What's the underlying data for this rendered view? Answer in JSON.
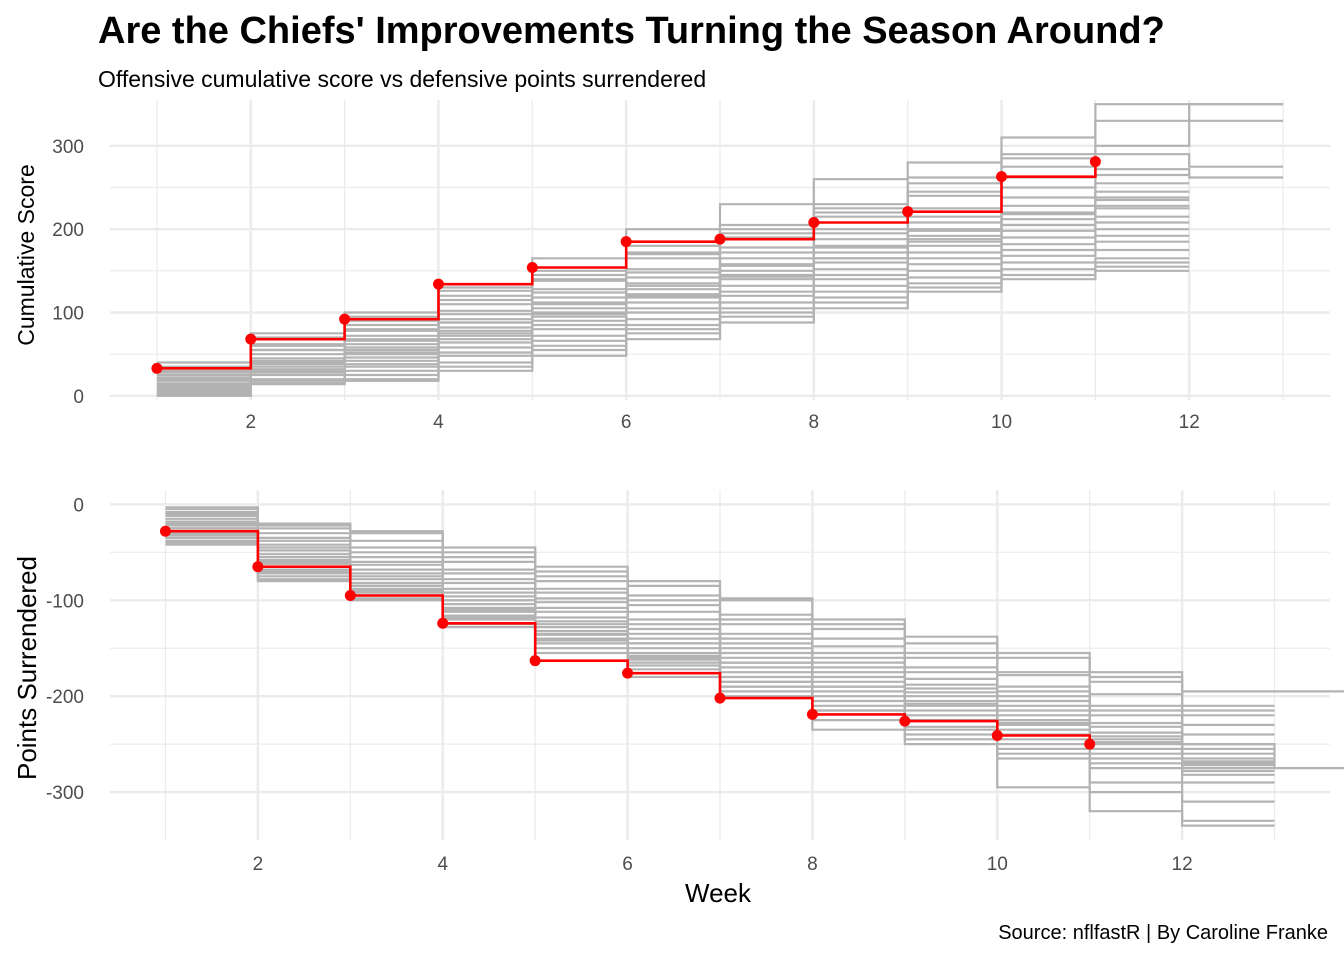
{
  "title": "Are the Chiefs' Improvements Turning the Season Around?",
  "subtitle": "Offensive cumulative score vs defensive points surrendered",
  "caption": "Source: nflfastR | By Caroline Franke",
  "colors": {
    "highlight": "#ff0000",
    "others": "#b3b3b3",
    "grid": "#ebebeb",
    "axis_text": "#4d4d4d"
  },
  "chart_data": [
    {
      "type": "line",
      "step": "horizontal-after",
      "title": "",
      "xlabel": "",
      "ylabel": "Cumulative Score",
      "xlim": [
        0.5,
        13.5
      ],
      "ylim": [
        -5,
        355
      ],
      "xticks": [
        2,
        4,
        6,
        8,
        10,
        12
      ],
      "yticks": [
        0,
        100,
        200,
        300
      ],
      "grid": true,
      "legend": "none",
      "highlight": {
        "x": [
          1,
          2,
          3,
          4,
          5,
          6,
          7,
          8,
          9,
          10,
          11
        ],
        "y": [
          33,
          68,
          92,
          134,
          154,
          185,
          188,
          208,
          221,
          263,
          281
        ]
      },
      "others": [
        {
          "y": [
            40,
            75,
            100,
            130,
            165,
            200,
            230,
            260,
            280,
            310,
            350,
            350
          ]
        },
        {
          "y": [
            30,
            62,
            90,
            126,
            150,
            180,
            205,
            230,
            262,
            290,
            330,
            350
          ]
        },
        {
          "y": [
            25,
            60,
            85,
            115,
            140,
            172,
            200,
            225,
            255,
            285,
            300,
            330
          ]
        },
        {
          "y": [
            20,
            55,
            80,
            110,
            138,
            165,
            190,
            215,
            245,
            275,
            290,
            275
          ]
        },
        {
          "y": [
            35,
            70,
            95,
            120,
            145,
            170,
            195,
            220,
            240,
            262,
            272,
            262
          ]
        },
        {
          "y": [
            28,
            55,
            78,
            102,
            128,
            152,
            178,
            200,
            225,
            250,
            265
          ]
        },
        {
          "y": [
            22,
            50,
            72,
            98,
            124,
            148,
            172,
            195,
            215,
            238,
            255
          ]
        },
        {
          "y": [
            18,
            45,
            68,
            92,
            118,
            142,
            165,
            188,
            208,
            228,
            245
          ]
        },
        {
          "y": [
            15,
            40,
            62,
            88,
            112,
            135,
            158,
            180,
            200,
            220,
            235
          ]
        },
        {
          "y": [
            12,
            38,
            58,
            82,
            105,
            128,
            150,
            172,
            192,
            212,
            225
          ]
        },
        {
          "y": [
            10,
            35,
            55,
            78,
            100,
            122,
            145,
            165,
            185,
            205,
            215
          ]
        },
        {
          "y": [
            8,
            30,
            50,
            72,
            95,
            118,
            140,
            160,
            180,
            198,
            208
          ]
        },
        {
          "y": [
            6,
            28,
            46,
            68,
            90,
            112,
            132,
            152,
            172,
            190,
            200
          ]
        },
        {
          "y": [
            5,
            25,
            42,
            64,
            85,
            105,
            125,
            145,
            165,
            182,
            192
          ]
        },
        {
          "y": [
            3,
            20,
            38,
            58,
            80,
            100,
            120,
            140,
            158,
            175,
            185
          ]
        },
        {
          "y": [
            2,
            18,
            35,
            52,
            72,
            92,
            112,
            132,
            150,
            168,
            175
          ]
        },
        {
          "y": [
            1,
            15,
            30,
            48,
            66,
            85,
            105,
            125,
            142,
            160,
            165
          ]
        },
        {
          "y": [
            0,
            15,
            25,
            40,
            60,
            80,
            100,
            118,
            135,
            152,
            155
          ]
        },
        {
          "y": [
            0,
            14,
            20,
            35,
            55,
            75,
            95,
            112,
            130,
            145,
            150
          ]
        },
        {
          "y": [
            3,
            15,
            18,
            30,
            48,
            68,
            88,
            105,
            125,
            140,
            160
          ]
        },
        {
          "y": [
            10,
            32,
            52,
            75,
            98,
            120,
            143,
            165,
            188,
            205,
            228
          ]
        },
        {
          "y": [
            14,
            42,
            66,
            88,
            110,
            132,
            156,
            178,
            198,
            218,
            238
          ]
        }
      ]
    },
    {
      "type": "line",
      "step": "horizontal-after",
      "title": "",
      "xlabel": "Week",
      "ylabel": "Points Surrendered",
      "xlim": [
        0.4,
        13.6
      ],
      "ylim": [
        -350,
        15
      ],
      "xticks": [
        2,
        4,
        6,
        8,
        10,
        12
      ],
      "yticks": [
        0,
        -100,
        -200,
        -300
      ],
      "grid": true,
      "legend": "none",
      "highlight": {
        "x": [
          1,
          2,
          3,
          4,
          5,
          6,
          7,
          8,
          9,
          10,
          11
        ],
        "y": [
          -28,
          -65,
          -95,
          -124,
          -163,
          -176,
          -202,
          -219,
          -226,
          -241,
          -250
        ]
      },
      "others": [
        {
          "y": [
            -3,
            -20,
            -28,
            -45,
            -65,
            -80,
            -98,
            -120,
            -138,
            -155,
            -175,
            -195,
            -195
          ]
        },
        {
          "y": [
            -5,
            -22,
            -30,
            -50,
            -70,
            -85,
            -100,
            -125,
            -145,
            -160,
            -180,
            -210
          ]
        },
        {
          "y": [
            -8,
            -25,
            -38,
            -55,
            -75,
            -95,
            -115,
            -130,
            -155,
            -175,
            -185,
            -215
          ]
        },
        {
          "y": [
            -10,
            -30,
            -45,
            -60,
            -80,
            -100,
            -120,
            -140,
            -160,
            -178,
            -198,
            -220
          ]
        },
        {
          "y": [
            -12,
            -35,
            -50,
            -68,
            -88,
            -105,
            -125,
            -148,
            -170,
            -190,
            -210,
            -230
          ]
        },
        {
          "y": [
            -15,
            -38,
            -55,
            -72,
            -92,
            -112,
            -135,
            -155,
            -175,
            -195,
            -215,
            -240
          ]
        },
        {
          "y": [
            -18,
            -42,
            -60,
            -78,
            -98,
            -120,
            -140,
            -160,
            -182,
            -200,
            -220,
            -250
          ]
        },
        {
          "y": [
            -20,
            -45,
            -63,
            -82,
            -102,
            -125,
            -145,
            -165,
            -188,
            -205,
            -228,
            -250
          ]
        },
        {
          "y": [
            -22,
            -48,
            -68,
            -88,
            -108,
            -130,
            -150,
            -170,
            -192,
            -210,
            -232,
            -255
          ]
        },
        {
          "y": [
            -25,
            -52,
            -72,
            -92,
            -112,
            -135,
            -155,
            -175,
            -196,
            -215,
            -238,
            -260
          ]
        },
        {
          "y": [
            -28,
            -55,
            -75,
            -96,
            -118,
            -140,
            -160,
            -180,
            -200,
            -220,
            -242,
            -265
          ]
        },
        {
          "y": [
            -30,
            -58,
            -78,
            -100,
            -122,
            -145,
            -165,
            -185,
            -205,
            -225,
            -245,
            -268
          ]
        },
        {
          "y": [
            -32,
            -62,
            -82,
            -104,
            -128,
            -150,
            -170,
            -190,
            -210,
            -230,
            -250,
            -272
          ]
        },
        {
          "y": [
            -35,
            -65,
            -85,
            -108,
            -132,
            -155,
            -175,
            -195,
            -215,
            -235,
            -255,
            -275
          ]
        },
        {
          "y": [
            -38,
            -68,
            -88,
            -112,
            -136,
            -158,
            -180,
            -200,
            -220,
            -240,
            -260,
            -278
          ]
        },
        {
          "y": [
            -40,
            -70,
            -92,
            -116,
            -140,
            -162,
            -185,
            -205,
            -225,
            -245,
            -265,
            -282
          ]
        },
        {
          "y": [
            -42,
            -75,
            -95,
            -120,
            -145,
            -168,
            -190,
            -210,
            -232,
            -250,
            -270,
            -290
          ]
        },
        {
          "y": [
            -38,
            -78,
            -98,
            -125,
            -150,
            -172,
            -195,
            -215,
            -240,
            -260,
            -290,
            -310
          ]
        },
        {
          "y": [
            -40,
            -80,
            -100,
            -128,
            -155,
            -180,
            -200,
            -225,
            -245,
            -265,
            -300,
            -330
          ]
        },
        {
          "y": [
            -35,
            -72,
            -90,
            -110,
            -135,
            -160,
            -185,
            -235,
            -250,
            -295,
            -320,
            -335
          ]
        },
        {
          "y": [
            -32,
            -70,
            -95,
            -118,
            -142,
            -165,
            -190,
            -215,
            -235,
            -255,
            -275,
            -250,
            -275
          ]
        },
        {
          "y": [
            -25,
            -60,
            -85,
            -100,
            -125,
            -145,
            -165,
            -190,
            -208,
            -228,
            -248,
            -270
          ]
        }
      ]
    }
  ]
}
